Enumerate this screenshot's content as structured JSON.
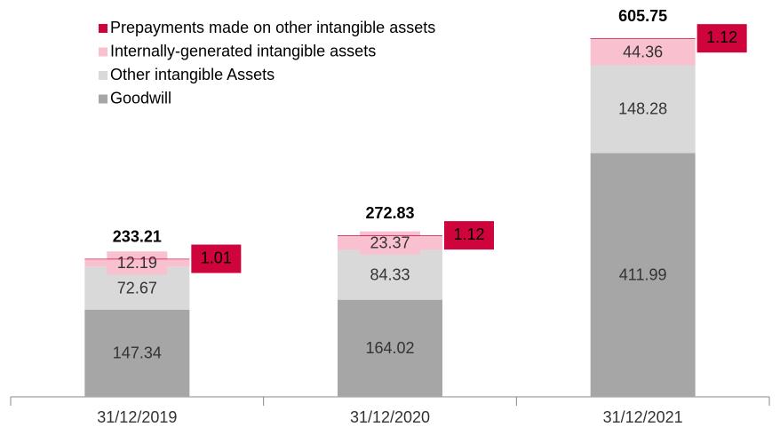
{
  "chart_data": {
    "type": "stacked-bar",
    "categories": [
      "31/12/2019",
      "31/12/2020",
      "31/12/2021"
    ],
    "series": [
      {
        "name": "Goodwill",
        "color": "#a6a6a6",
        "values": [
          147.34,
          164.02,
          411.99
        ]
      },
      {
        "name": "Other intangible Assets",
        "color": "#d9d9d9",
        "values": [
          72.67,
          84.33,
          148.28
        ]
      },
      {
        "name": "Internally-generated intangible assets",
        "color": "#f9c0cf",
        "values": [
          12.19,
          23.37,
          44.36
        ]
      },
      {
        "name": "Prepayments made on other intangible assets",
        "color": "#d0043c",
        "values": [
          1.01,
          1.12,
          1.12
        ]
      }
    ],
    "totals": [
      233.21,
      272.83,
      605.75
    ],
    "ylim": [
      0,
      660
    ]
  }
}
